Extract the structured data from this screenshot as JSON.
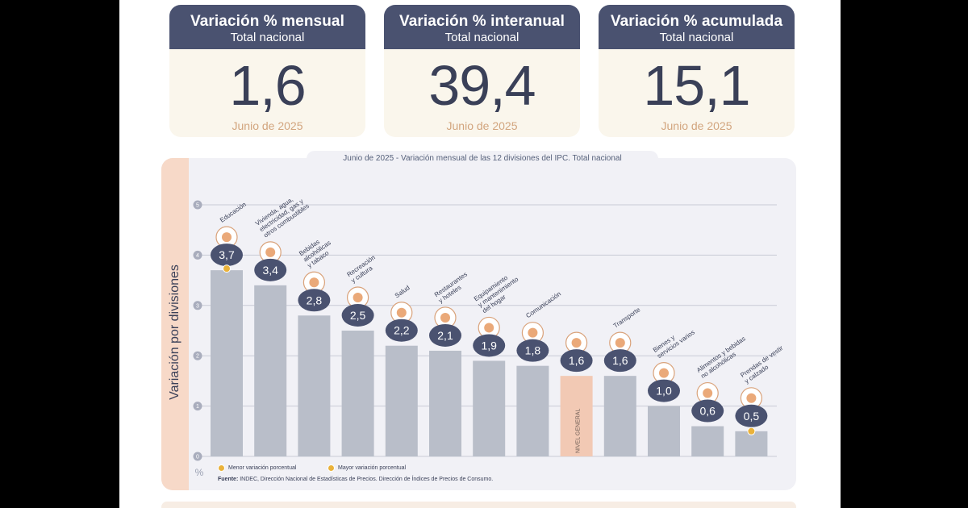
{
  "cards": [
    {
      "title": "Variación % mensual",
      "subtitle": "Total nacional",
      "value": "1,6",
      "date": "Junio de 2025"
    },
    {
      "title": "Variación % interanual",
      "subtitle": "Total nacional",
      "value": "39,4",
      "date": "Junio de 2025"
    },
    {
      "title": "Variación % acumulada",
      "subtitle": "Total nacional",
      "value": "15,1",
      "date": "Junio de 2025"
    }
  ],
  "chart": {
    "title": "Junio de 2025 - Variación mensual de las 12 divisiones del IPC. Total nacional",
    "ylabel": "Variación por divisiones",
    "yunit": "%",
    "legend_min": "Menor variación porcentual",
    "legend_max": "Mayor variación porcentual",
    "source_label": "Fuente:",
    "source_text": "INDEC, Dirección Nacional de Estadísticas de Precios. Dirección de Índices de Precios de Consumo."
  },
  "colors": {
    "bar": "#b9bec9",
    "highlight_bar": "#f2c9b4",
    "badge": "#4a5270",
    "marker": "#eab23a",
    "grid": "#c9cbd6"
  },
  "chart_data": {
    "type": "bar",
    "title": "Junio de 2025 - Variación mensual de las 12 divisiones del IPC. Total nacional",
    "ylabel": "Variación por divisiones",
    "ylim": [
      0,
      5
    ],
    "yticks": [
      0,
      1,
      2,
      3,
      4,
      5
    ],
    "grid": true,
    "categories": [
      "Educación",
      "Vivienda, agua, electricidad, gas y otros combustibles",
      "Bebidas alcohólicas y tabaco",
      "Recreación y cultura",
      "Salud",
      "Restaurantes y hoteles",
      "Equipamiento y mantenimiento del hogar",
      "Comunicación",
      "NIVEL GENERAL",
      "Transporte",
      "Bienes y servicios varios",
      "Alimentos y bebidas no alcohólicas",
      "Prendas de vestir y calzado"
    ],
    "label_lines": [
      [
        "Educación"
      ],
      [
        "Vivienda, agua,",
        "electricidad, gas y",
        "otros combustibles"
      ],
      [
        "Bebidas",
        "alcohólicas",
        "y tabaco"
      ],
      [
        "Recreación",
        "y cultura"
      ],
      [
        "Salud"
      ],
      [
        "Restaurantes",
        "y hoteles"
      ],
      [
        "Equipamiento",
        "y mantenimiento",
        "del hogar"
      ],
      [
        "Comunicación"
      ],
      [],
      [
        "Transporte"
      ],
      [
        "Bienes y",
        "servicios varios"
      ],
      [
        "Alimentos y bebidas",
        "no alcohólicas"
      ],
      [
        "Prendas de vestir",
        "y calzado"
      ]
    ],
    "values": [
      3.7,
      3.4,
      2.8,
      2.5,
      2.2,
      2.1,
      1.9,
      1.8,
      1.6,
      1.6,
      1.0,
      0.6,
      0.5
    ],
    "value_labels": [
      "3,7",
      "3,4",
      "2,8",
      "2,5",
      "2,2",
      "2,1",
      "1,9",
      "1,8",
      "1,6",
      "1,6",
      "1,0",
      "0,6",
      "0,5"
    ],
    "highlight_index": 8,
    "highlight_inside_label": "NIVEL GENERAL",
    "max_marker_index": 0,
    "min_marker_index": 12,
    "icons": [
      "book-icon",
      "plug-bulb-icon",
      "bottle-icon",
      "umbrella-sun-icon",
      "medical-cross-icon",
      "cutlery-icon",
      "sofa-icon",
      "phone-icon",
      "basket-icon",
      "bus-icon",
      "scissors-icon",
      "chicken-icon",
      "shirt-icon"
    ]
  }
}
